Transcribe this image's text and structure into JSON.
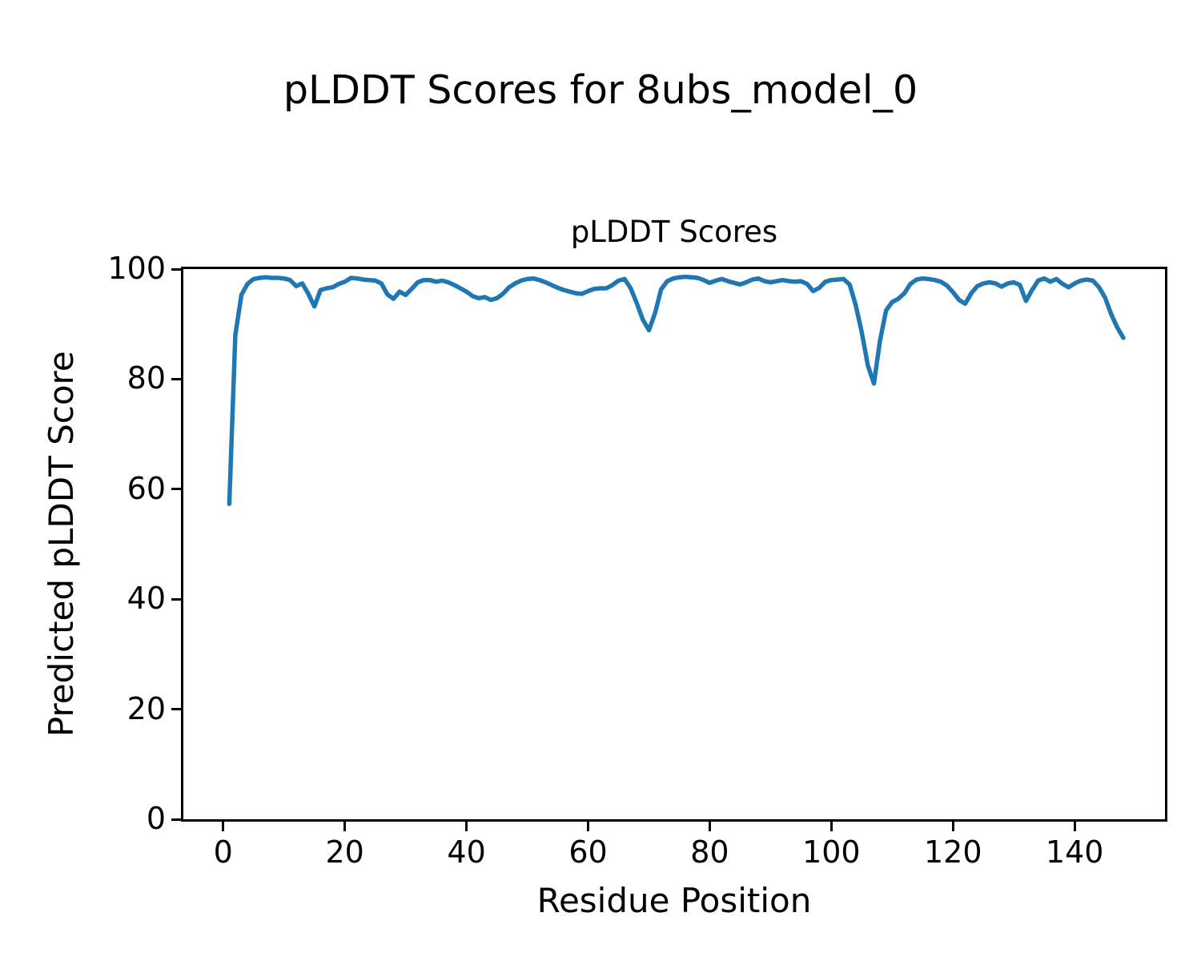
{
  "figure": {
    "suptitle": "pLDDT Scores for 8ubs_model_0",
    "background_color": "#ffffff",
    "text_color": "#000000"
  },
  "chart_data": {
    "type": "line",
    "title": "pLDDT Scores",
    "xlabel": "Residue Position",
    "ylabel": "Predicted pLDDT Score",
    "xlim": [
      -6.55,
      154.85
    ],
    "ylim": [
      0,
      100
    ],
    "x_ticks": [
      0,
      20,
      40,
      60,
      80,
      100,
      120,
      140
    ],
    "y_ticks": [
      0,
      20,
      40,
      60,
      80,
      100
    ],
    "grid": false,
    "legend": "none",
    "line_color": "#1f77b4",
    "line_width": 5.5,
    "series": [
      {
        "name": "pLDDT",
        "x": [
          1,
          2,
          3,
          4,
          5,
          6,
          7,
          8,
          9,
          10,
          11,
          12,
          13,
          14,
          15,
          16,
          17,
          18,
          19,
          20,
          21,
          22,
          23,
          24,
          25,
          26,
          27,
          28,
          29,
          30,
          31,
          32,
          33,
          34,
          35,
          36,
          37,
          38,
          39,
          40,
          41,
          42,
          43,
          44,
          45,
          46,
          47,
          48,
          49,
          50,
          51,
          52,
          53,
          54,
          55,
          56,
          57,
          58,
          59,
          60,
          61,
          62,
          63,
          64,
          65,
          66,
          67,
          68,
          69,
          70,
          71,
          72,
          73,
          74,
          75,
          76,
          77,
          78,
          79,
          80,
          81,
          82,
          83,
          84,
          85,
          86,
          87,
          88,
          89,
          90,
          91,
          92,
          93,
          94,
          95,
          96,
          97,
          98,
          99,
          100,
          101,
          102,
          103,
          104,
          105,
          106,
          107,
          108,
          109,
          110,
          111,
          112,
          113,
          114,
          115,
          116,
          117,
          118,
          119,
          120,
          121,
          122,
          123,
          124,
          125,
          126,
          127,
          128,
          129,
          130,
          131,
          132,
          133,
          134,
          135,
          136,
          137,
          138,
          139,
          140,
          141,
          142,
          143,
          144,
          145,
          146,
          147,
          148
        ],
        "y": [
          57.3,
          88.0,
          95.3,
          97.3,
          98.2,
          98.4,
          98.5,
          98.4,
          98.4,
          98.3,
          98.0,
          96.9,
          97.4,
          95.5,
          93.2,
          96.2,
          96.5,
          96.7,
          97.3,
          97.7,
          98.4,
          98.3,
          98.1,
          98.0,
          97.9,
          97.4,
          95.4,
          94.6,
          95.9,
          95.3,
          96.4,
          97.6,
          98.0,
          98.0,
          97.7,
          97.9,
          97.6,
          97.1,
          96.5,
          95.9,
          95.1,
          94.7,
          94.9,
          94.4,
          94.7,
          95.5,
          96.7,
          97.4,
          97.9,
          98.2,
          98.3,
          98.0,
          97.6,
          97.1,
          96.6,
          96.2,
          95.9,
          95.6,
          95.5,
          96.0,
          96.4,
          96.5,
          96.5,
          97.1,
          97.9,
          98.2,
          96.5,
          93.8,
          90.8,
          88.9,
          92.0,
          96.3,
          97.8,
          98.3,
          98.5,
          98.6,
          98.5,
          98.4,
          98.0,
          97.5,
          97.9,
          98.2,
          97.8,
          97.5,
          97.2,
          97.6,
          98.1,
          98.3,
          97.8,
          97.6,
          97.8,
          98.0,
          97.8,
          97.7,
          97.8,
          97.3,
          96.0,
          96.6,
          97.7,
          98.0,
          98.1,
          98.2,
          97.2,
          93.5,
          88.5,
          82.5,
          79.2,
          87.0,
          92.5,
          94.0,
          94.6,
          95.6,
          97.3,
          98.1,
          98.3,
          98.2,
          98.0,
          97.7,
          97.0,
          95.8,
          94.4,
          93.7,
          95.6,
          96.9,
          97.4,
          97.6,
          97.4,
          96.8,
          97.4,
          97.6,
          97.1,
          94.2,
          96.2,
          97.9,
          98.3,
          97.7,
          98.2,
          97.3,
          96.7,
          97.4,
          97.9,
          98.1,
          97.9,
          96.7,
          94.8,
          91.8,
          89.4,
          87.5
        ]
      }
    ]
  }
}
